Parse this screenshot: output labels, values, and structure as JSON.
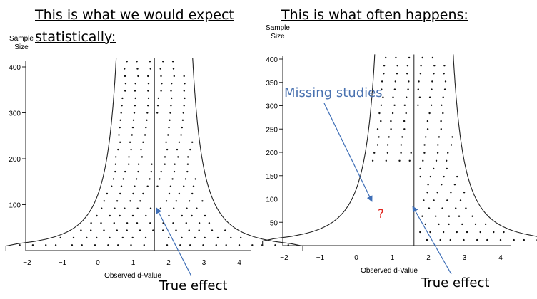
{
  "headings": {
    "left_line1": "This is what we would expect",
    "left_line2": "statistically:",
    "right": "This is what often happens:"
  },
  "annotations": {
    "true_effect_left": "True effect",
    "true_effect_right": "True effect",
    "missing_studies": "Missing studies",
    "question_mark": "?"
  },
  "colors": {
    "annotation_blue": "#4a72b0",
    "arrow_blue": "#3f6fb7",
    "question_red": "#e0231c"
  },
  "chart_data": [
    {
      "type": "scatter",
      "title": "",
      "xlabel": "Observed d-Value",
      "ylabel": "Sample Size",
      "xlim": [
        -2,
        4.2
      ],
      "ylim": [
        0,
        420
      ],
      "xticks": [
        -2,
        -1,
        0,
        1,
        2,
        3,
        4
      ],
      "yticks": [
        100,
        200,
        300,
        400
      ],
      "true_effect": 1.6,
      "funnel": "symmetric"
    },
    {
      "type": "scatter",
      "title": "",
      "xlabel": "Observed d-Value",
      "ylabel": "Sample Size",
      "xlim": [
        -2,
        4.2
      ],
      "ylim": [
        0,
        410
      ],
      "xticks": [
        -2,
        -1,
        0,
        1,
        2,
        3,
        4
      ],
      "yticks": [
        50,
        100,
        150,
        200,
        250,
        300,
        350,
        400
      ],
      "true_effect": 1.6,
      "funnel": "asymmetric"
    }
  ]
}
